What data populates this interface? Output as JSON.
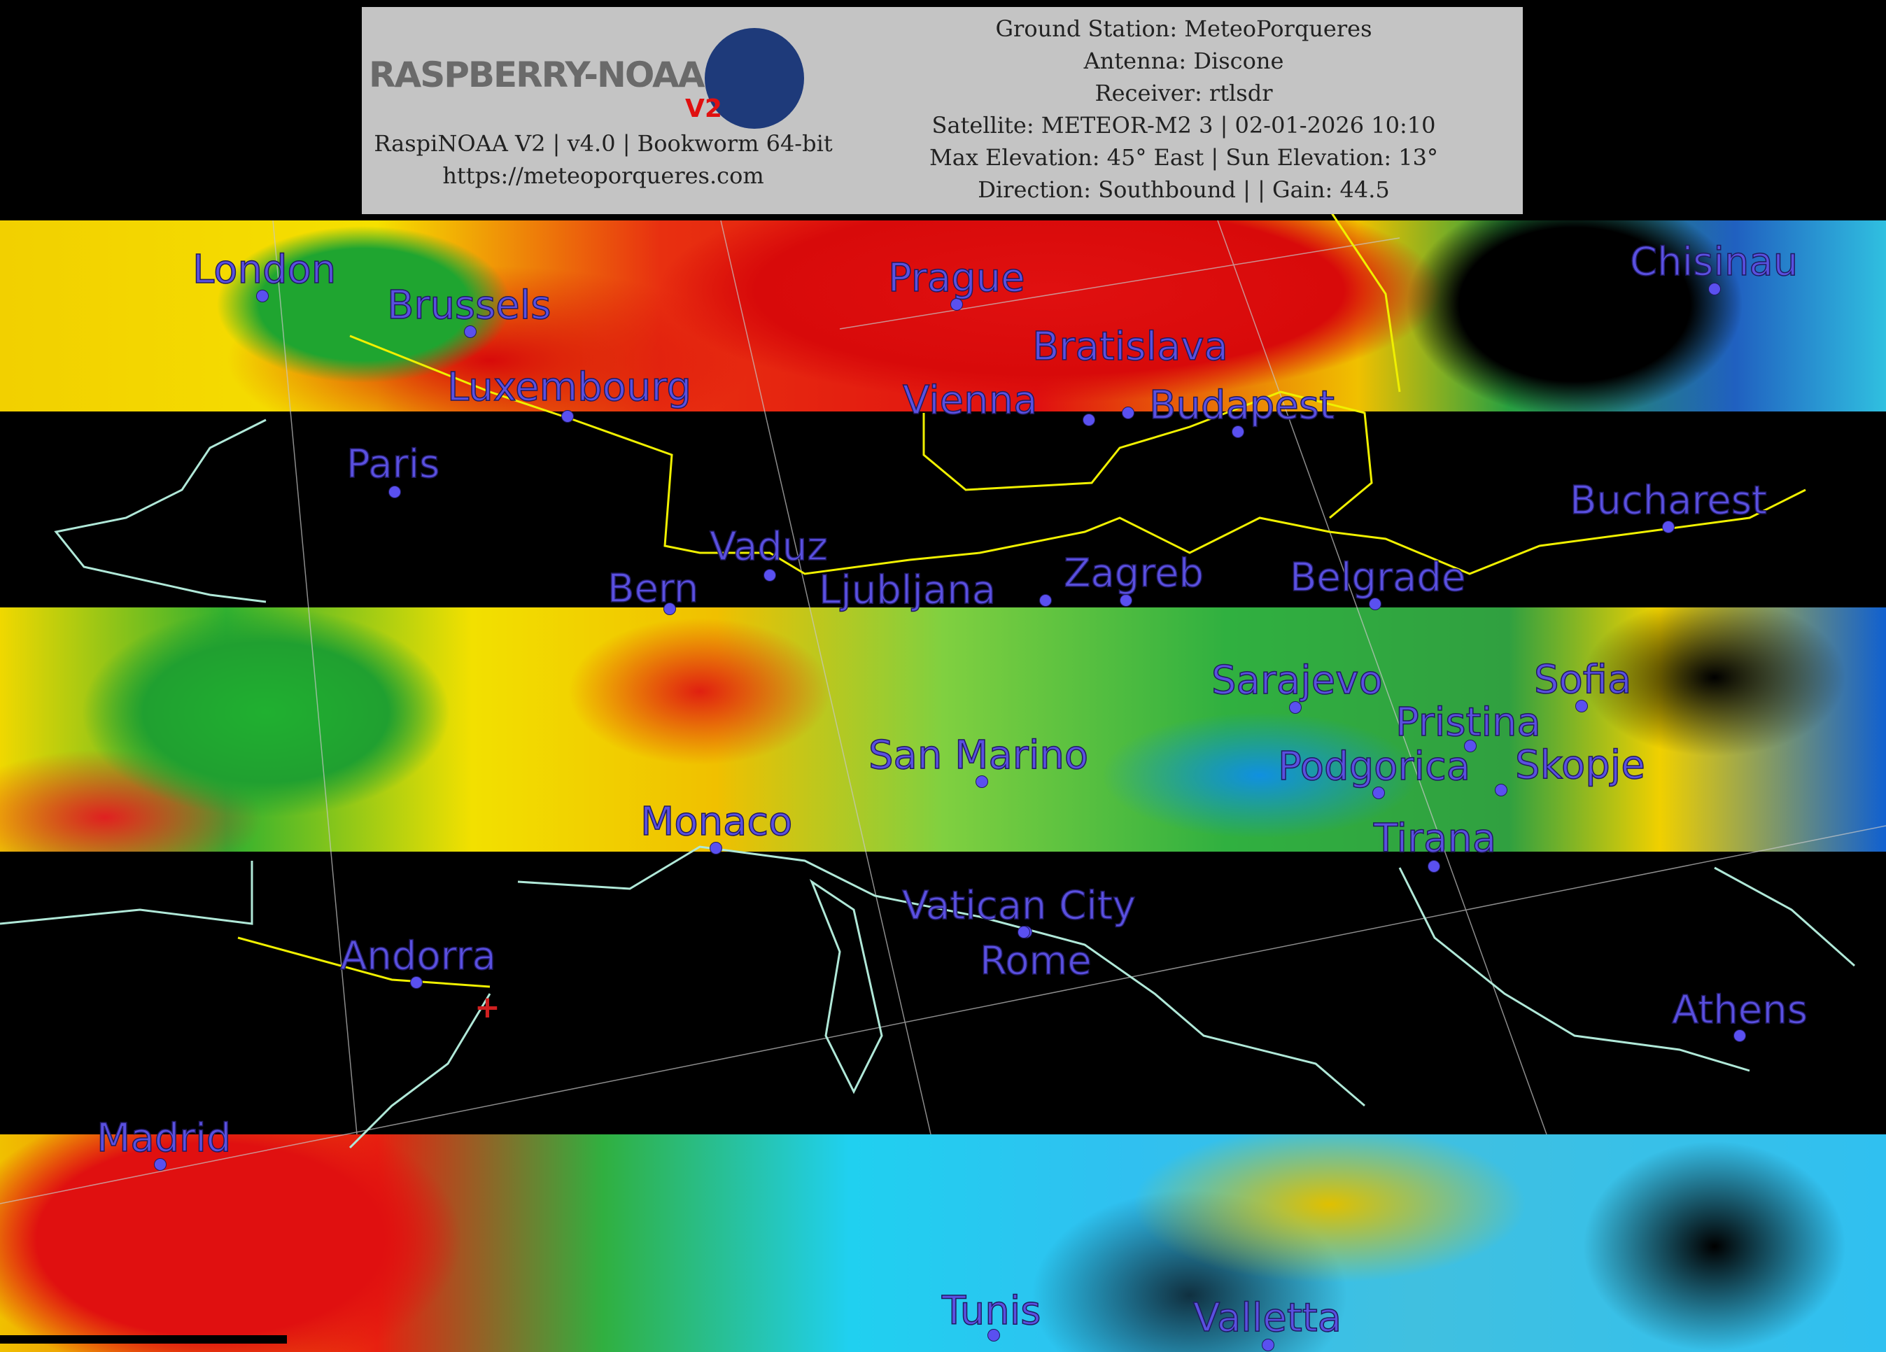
{
  "header": {
    "logo_text": "RASPBERRY-NOAA V2",
    "software": "RaspiNOAA V2 | v4.0 | Bookworm 64-bit",
    "website": "https://meteoporqueres.com",
    "ground_station": "Ground Station: MeteoPorqueres",
    "antenna": "Antenna: Discone",
    "receiver": "Receiver: rtlsdr",
    "satellite": "Satellite: METEOR-M2 3 | 02-01-2026 10:10",
    "elevation": "Max Elevation: 45° East | Sun Elevation: 13°",
    "direction": "Direction: Southbound | | Gain: 44.5"
  },
  "map": {
    "label_color": "#5a50e0",
    "border_color": "#f0f000",
    "coast_color": "#b0e8d8",
    "station_marker_color": "#d02020",
    "station_marker": "+",
    "cities": [
      "London",
      "Brussels",
      "Prague",
      "Chisinau",
      "Luxembourg",
      "Bratislava",
      "Vienna",
      "Budapest",
      "Paris",
      "Bucharest",
      "Vaduz",
      "Bern",
      "Ljubljana",
      "Zagreb",
      "Belgrade",
      "Sarajevo",
      "Sofia",
      "Pristina",
      "San Marino",
      "Podgorica",
      "Skopje",
      "Monaco",
      "Tirana",
      "Vatican City",
      "Rome",
      "Andorra",
      "Athens",
      "Madrid",
      "Tunis",
      "Valletta"
    ]
  }
}
